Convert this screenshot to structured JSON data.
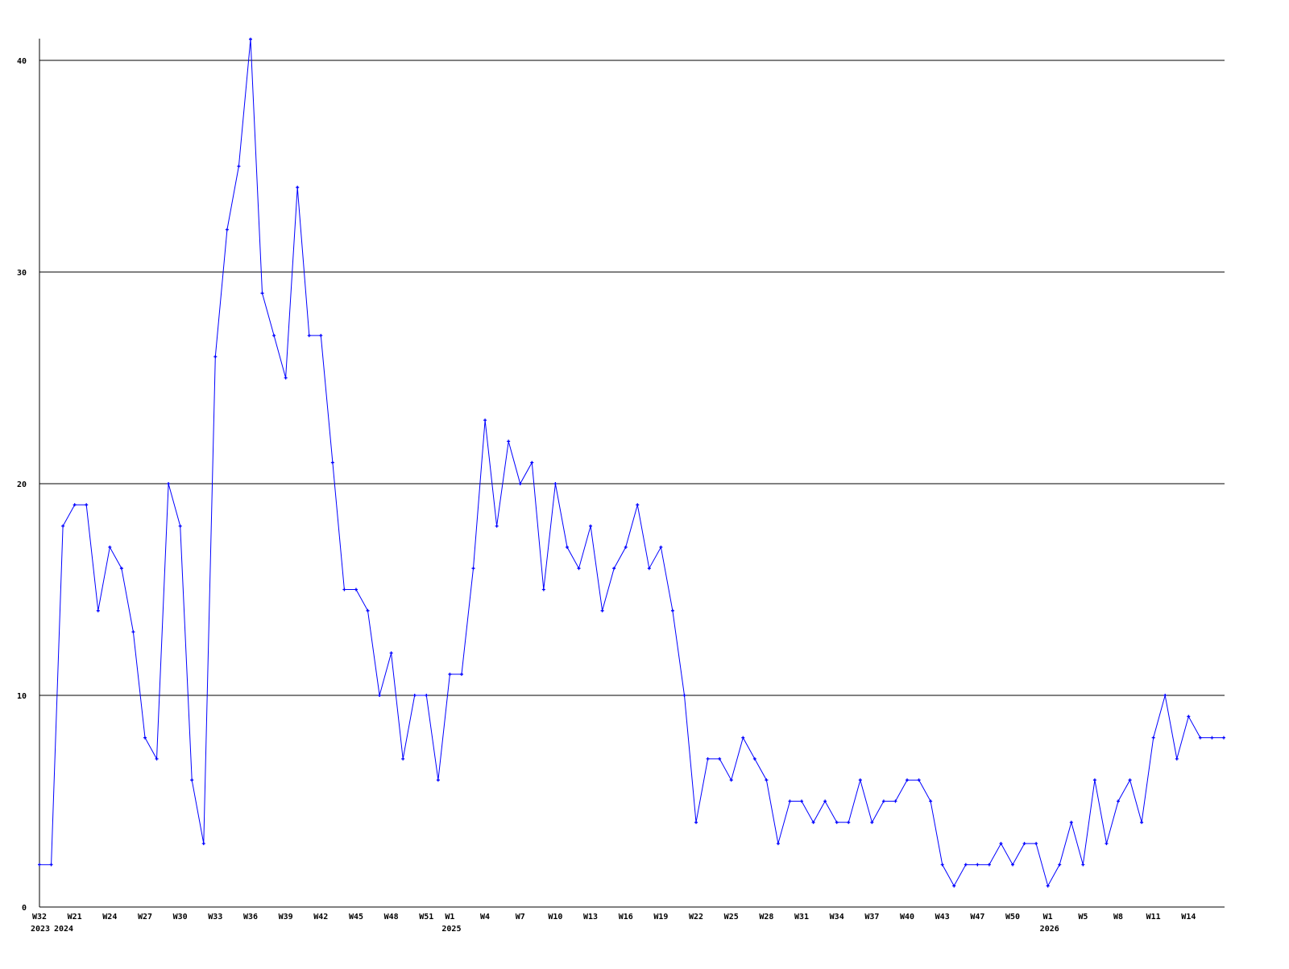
{
  "chart_data": {
    "type": "line",
    "title": "",
    "xlabel": "",
    "ylabel": "",
    "ylim": [
      0,
      41
    ],
    "y_ticks": [
      0,
      10,
      20,
      30,
      40
    ],
    "grid": "horizontal",
    "line_color": "#0000ff",
    "x_tick_labels": [
      {
        "index": 0,
        "label": "W32",
        "year": "2023"
      },
      {
        "index": 3,
        "label": "W21",
        "year": "2024"
      },
      {
        "index": 6,
        "label": "W24"
      },
      {
        "index": 9,
        "label": "W27"
      },
      {
        "index": 12,
        "label": "W30"
      },
      {
        "index": 15,
        "label": "W33"
      },
      {
        "index": 18,
        "label": "W36"
      },
      {
        "index": 21,
        "label": "W39"
      },
      {
        "index": 24,
        "label": "W42"
      },
      {
        "index": 27,
        "label": "W45"
      },
      {
        "index": 30,
        "label": "W48"
      },
      {
        "index": 33,
        "label": "W51"
      },
      {
        "index": 35,
        "label": "W1",
        "year": "2025"
      },
      {
        "index": 38,
        "label": "W4"
      },
      {
        "index": 41,
        "label": "W7"
      },
      {
        "index": 44,
        "label": "W10"
      },
      {
        "index": 47,
        "label": "W13"
      },
      {
        "index": 50,
        "label": "W16"
      },
      {
        "index": 53,
        "label": "W19"
      },
      {
        "index": 56,
        "label": "W22"
      },
      {
        "index": 59,
        "label": "W25"
      },
      {
        "index": 62,
        "label": "W28"
      },
      {
        "index": 65,
        "label": "W31"
      },
      {
        "index": 68,
        "label": "W34"
      },
      {
        "index": 71,
        "label": "W37"
      },
      {
        "index": 74,
        "label": "W40"
      },
      {
        "index": 77,
        "label": "W43"
      },
      {
        "index": 80,
        "label": "W47"
      },
      {
        "index": 83,
        "label": "W50"
      },
      {
        "index": 86,
        "label": "W1",
        "year": "2026"
      },
      {
        "index": 89,
        "label": "W5"
      },
      {
        "index": 92,
        "label": "W8"
      },
      {
        "index": 95,
        "label": "W11"
      },
      {
        "index": 98,
        "label": "W14"
      }
    ],
    "values": [
      2,
      2,
      18,
      19,
      19,
      14,
      17,
      16,
      13,
      8,
      7,
      20,
      18,
      6,
      3,
      26,
      32,
      35,
      41,
      29,
      27,
      25,
      34,
      27,
      27,
      21,
      15,
      15,
      14,
      10,
      12,
      7,
      10,
      10,
      6,
      11,
      11,
      16,
      23,
      18,
      22,
      20,
      21,
      15,
      20,
      17,
      16,
      18,
      14,
      16,
      17,
      19,
      16,
      17,
      14,
      10,
      4,
      7,
      7,
      6,
      8,
      7,
      6,
      3,
      5,
      5,
      4,
      5,
      4,
      4,
      6,
      4,
      5,
      5,
      6,
      6,
      5,
      2,
      1,
      2,
      2,
      2,
      3,
      2,
      3,
      3,
      1,
      2,
      4,
      2,
      6,
      3,
      5,
      6,
      4,
      8,
      10,
      7,
      9,
      8,
      8,
      8
    ]
  }
}
